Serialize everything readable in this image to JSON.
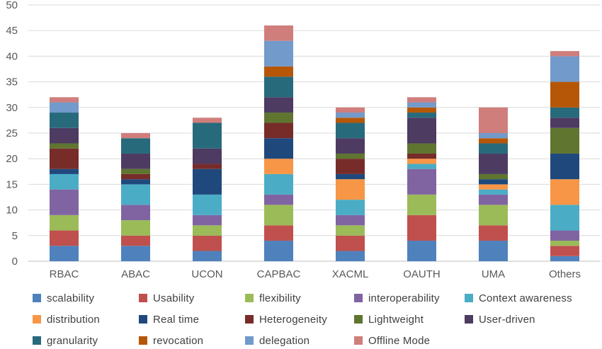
{
  "chart_data": {
    "type": "bar",
    "stacked": true,
    "categories": [
      "RBAC",
      "ABAC",
      "UCON",
      "CAPBAC",
      "XACML",
      "OAUTH",
      "UMA",
      "Others"
    ],
    "ylim": [
      0,
      50
    ],
    "yticks": [
      0,
      5,
      10,
      15,
      20,
      25,
      30,
      35,
      40,
      45,
      50
    ],
    "grid": true,
    "legend_position": "bottom",
    "series": [
      {
        "name": "scalability",
        "color": "#4F81BD",
        "values": [
          3,
          3,
          2,
          4,
          2,
          4,
          4,
          1
        ]
      },
      {
        "name": "Usability",
        "color": "#C0504D",
        "values": [
          3,
          2,
          3,
          3,
          3,
          5,
          3,
          2
        ]
      },
      {
        "name": "flexibility",
        "color": "#9BBB59",
        "values": [
          3,
          3,
          2,
          4,
          2,
          4,
          4,
          1
        ]
      },
      {
        "name": "interoperability",
        "color": "#8064A2",
        "values": [
          5,
          3,
          2,
          2,
          2,
          5,
          2,
          2
        ]
      },
      {
        "name": "Context awareness",
        "color": "#4BACC6",
        "values": [
          3,
          4,
          4,
          4,
          3,
          1,
          1,
          5
        ]
      },
      {
        "name": "distribution",
        "color": "#F79646",
        "values": [
          0,
          0,
          0,
          3,
          4,
          1,
          1,
          5
        ]
      },
      {
        "name": "Real time",
        "color": "#1F497D",
        "values": [
          1,
          1,
          5,
          4,
          1,
          0,
          1,
          5
        ]
      },
      {
        "name": "Heterogeneity",
        "color": "#772C2A",
        "values": [
          4,
          1,
          1,
          3,
          3,
          1,
          0,
          0
        ]
      },
      {
        "name": "Lightweight",
        "color": "#5F7530",
        "values": [
          1,
          1,
          0,
          2,
          1,
          2,
          1,
          5
        ]
      },
      {
        "name": "User-driven",
        "color": "#4D3B62",
        "values": [
          3,
          3,
          3,
          3,
          3,
          5,
          4,
          2
        ]
      },
      {
        "name": "granularity",
        "color": "#276A7C",
        "values": [
          3,
          3,
          5,
          4,
          3,
          1,
          2,
          2
        ]
      },
      {
        "name": "revocation",
        "color": "#B65708",
        "values": [
          0,
          0,
          0,
          2,
          1,
          1,
          1,
          5
        ]
      },
      {
        "name": "delegation",
        "color": "#729ACA",
        "values": [
          2,
          0,
          0,
          5,
          1,
          1,
          1,
          5
        ]
      },
      {
        "name": "Offline Mode",
        "color": "#D07E7C",
        "values": [
          1,
          1,
          1,
          3,
          1,
          1,
          5,
          1
        ]
      }
    ]
  }
}
